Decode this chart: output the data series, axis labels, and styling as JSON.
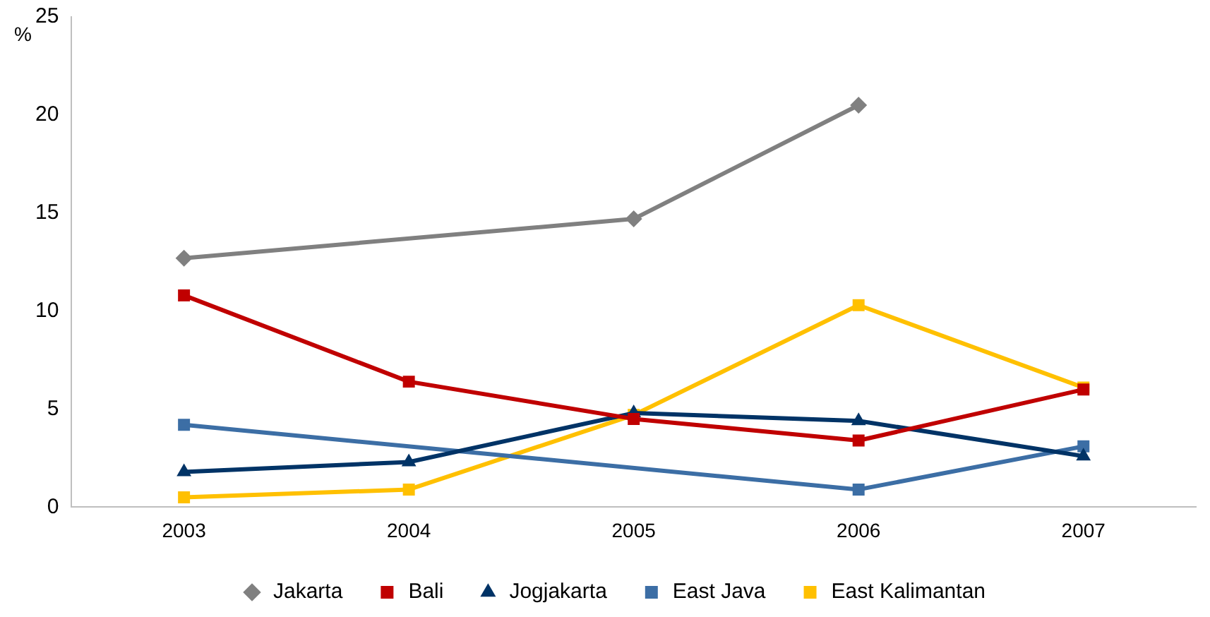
{
  "chart_data": {
    "type": "line",
    "ylabel": "%",
    "categories": [
      "2003",
      "2004",
      "2005",
      "2006",
      "2007"
    ],
    "ylim": [
      0,
      25
    ],
    "yticks": [
      0,
      5,
      10,
      15,
      20,
      25
    ],
    "grid": false,
    "legend": "bottom",
    "line_style": "solid",
    "series": [
      {
        "name": "Jakarta",
        "color": "#808080",
        "marker": "diamond",
        "values": [
          12.7,
          null,
          14.7,
          20.5,
          null
        ]
      },
      {
        "name": "Bali",
        "color": "#c00000",
        "marker": "square",
        "values": [
          10.8,
          6.4,
          4.5,
          3.4,
          6.0
        ]
      },
      {
        "name": "Jogjakarta",
        "color": "#003366",
        "marker": "triangle",
        "values": [
          1.8,
          2.3,
          4.8,
          4.4,
          2.6
        ]
      },
      {
        "name": "East Java",
        "color": "#3c6ea5",
        "marker": "square",
        "values": [
          4.2,
          null,
          null,
          0.9,
          3.1
        ]
      },
      {
        "name": "East Kalimantan",
        "color": "#ffc000",
        "marker": "square",
        "values": [
          0.5,
          0.9,
          4.7,
          10.3,
          6.1
        ]
      }
    ]
  }
}
